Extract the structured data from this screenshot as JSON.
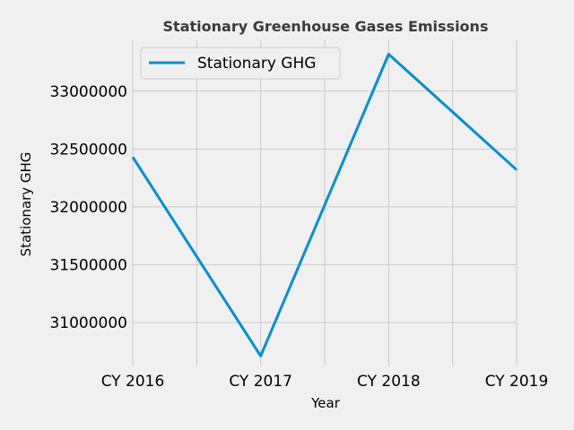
{
  "chart_data": {
    "type": "line",
    "title": "Stationary Greenhouse Gases Emissions",
    "xlabel": "Year",
    "ylabel": "Stationary GHG",
    "categories": [
      "CY 2016",
      "CY 2017",
      "CY 2018",
      "CY 2019"
    ],
    "series": [
      {
        "name": "Stationary GHG",
        "color": "#008fd5",
        "values": [
          32430000,
          30710000,
          33320000,
          32320000
        ]
      }
    ],
    "yticks": [
      31000000,
      31500000,
      32000000,
      32500000,
      33000000
    ],
    "ytick_labels": [
      "31000000",
      "31500000",
      "32000000",
      "32500000",
      "33000000"
    ],
    "ylim": [
      30620000,
      33440000
    ],
    "grid": true,
    "legend": "top-left"
  }
}
